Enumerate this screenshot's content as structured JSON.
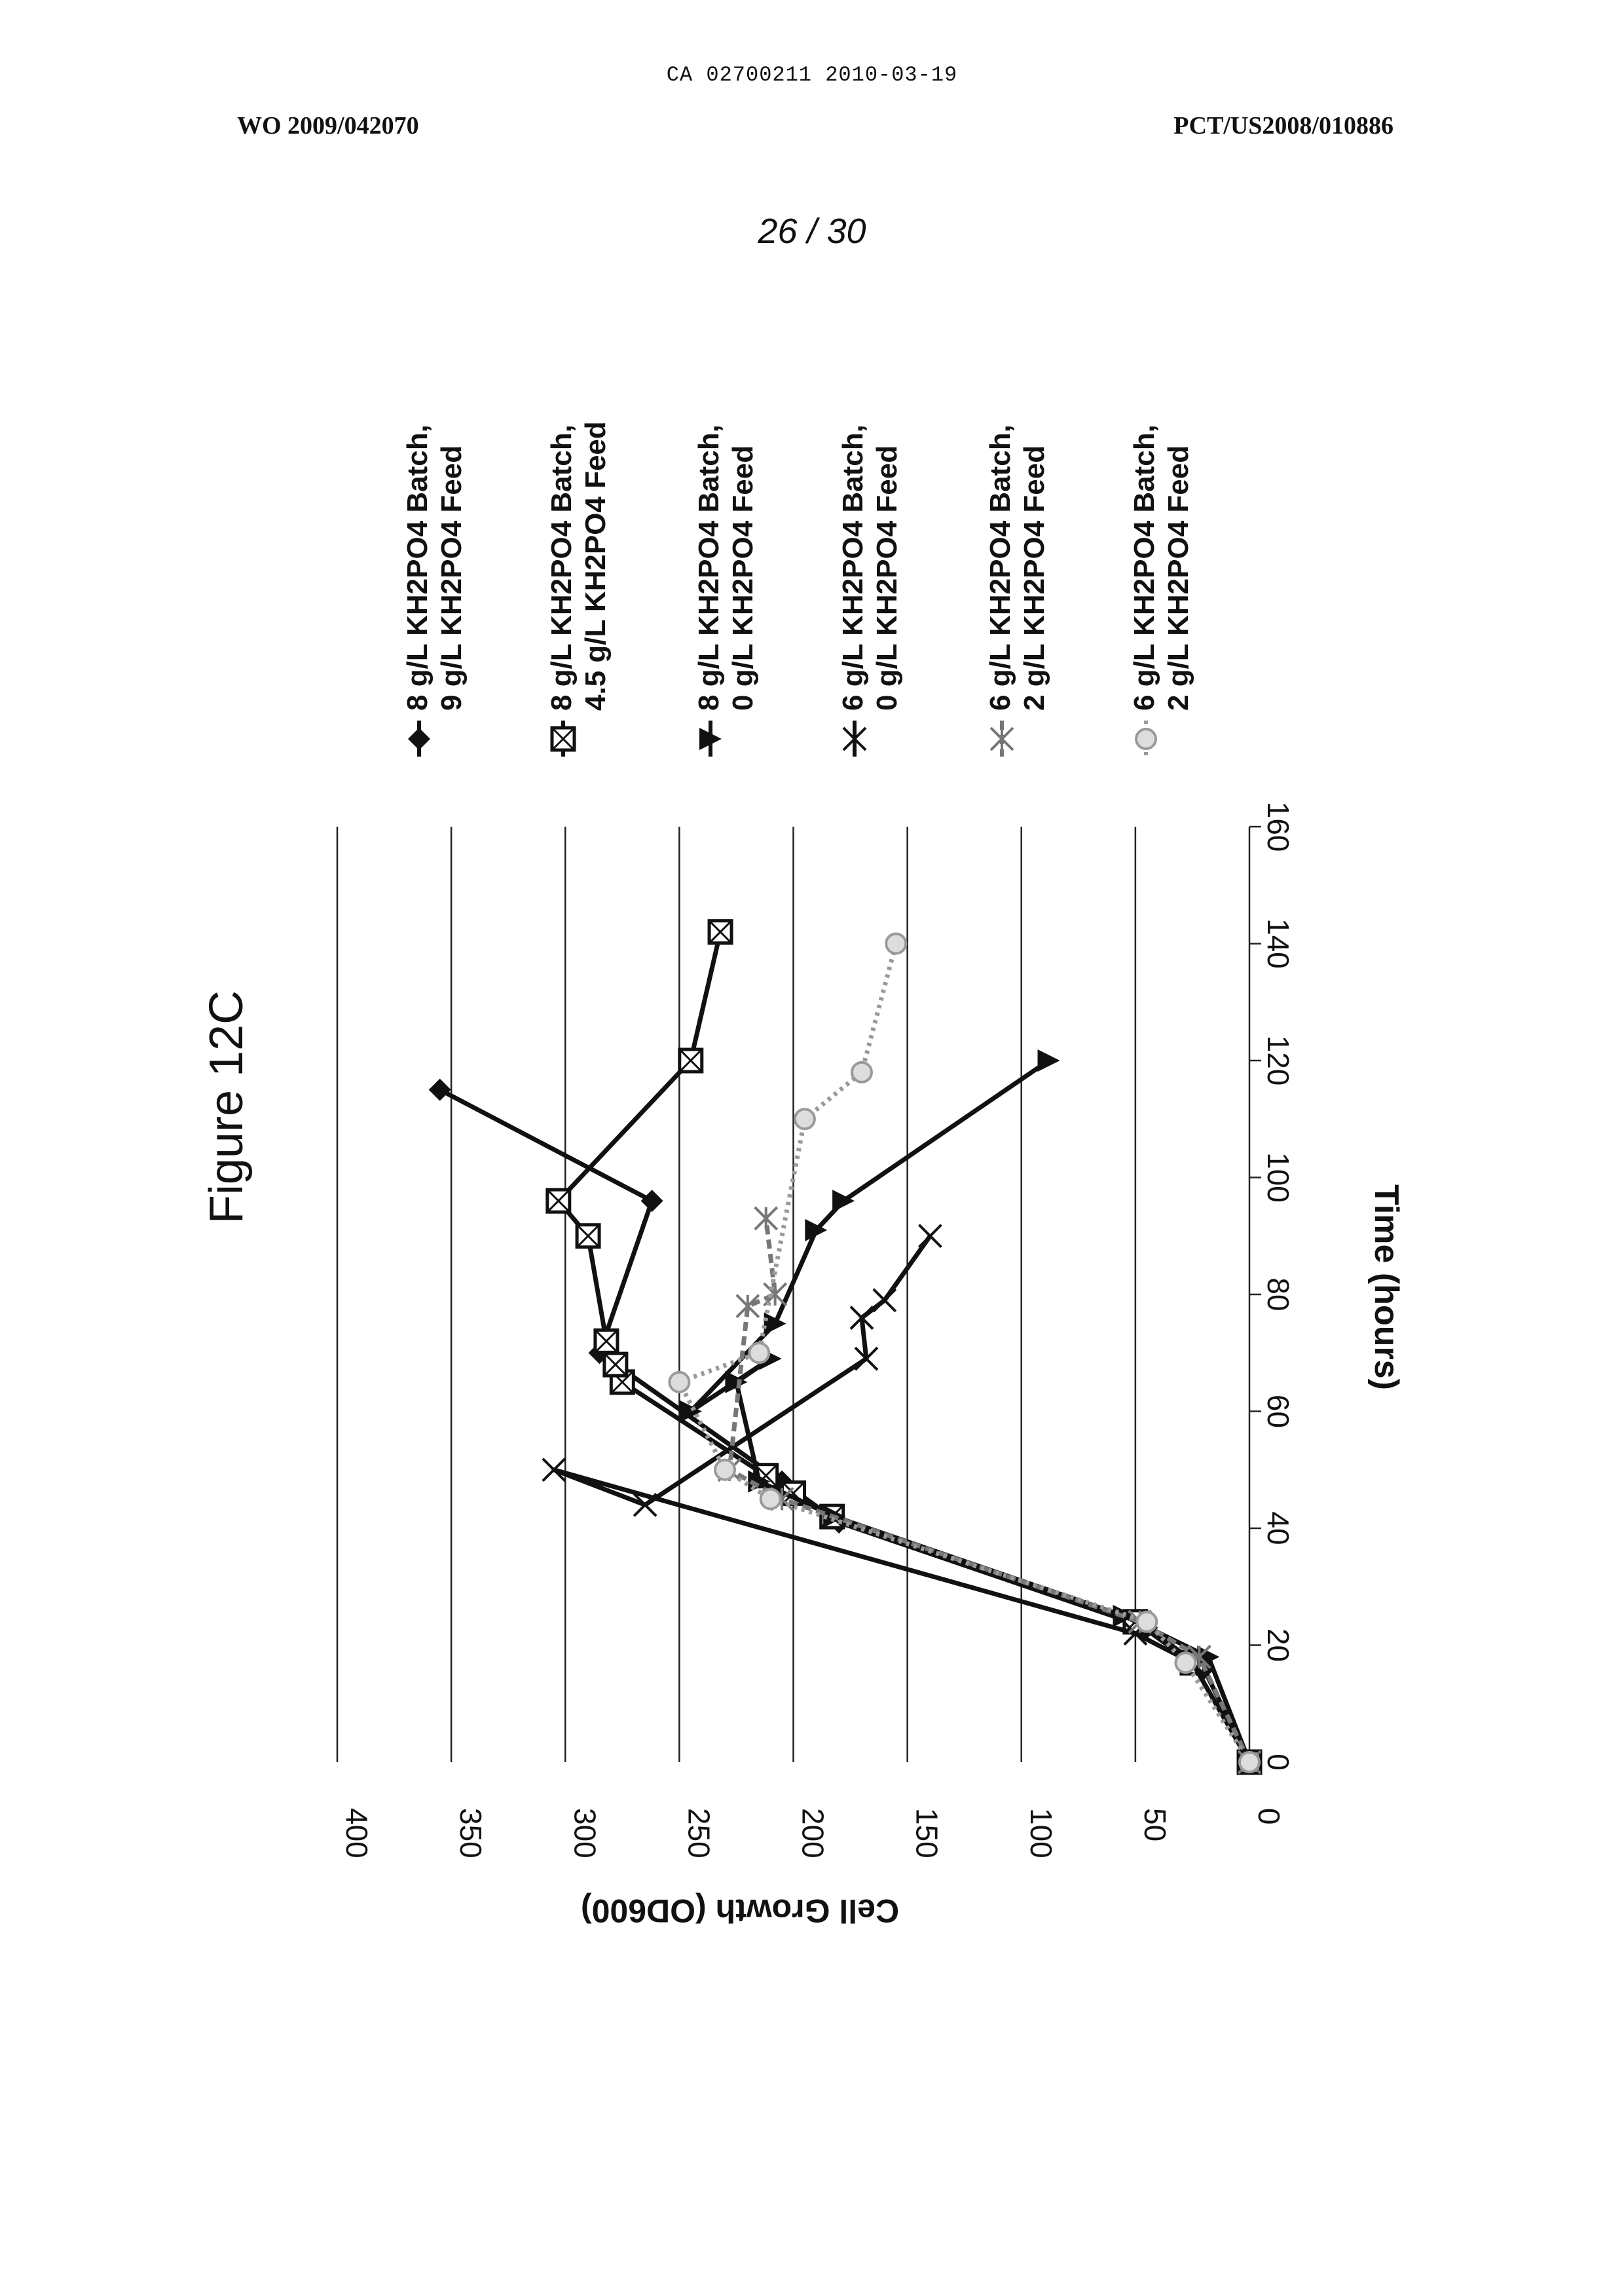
{
  "header": {
    "doc_id": "CA 02700211 2010-03-19",
    "publication": "WO 2009/042070",
    "application": "PCT/US2008/010886",
    "sheet": "26 / 30"
  },
  "chart_data": {
    "type": "line",
    "title": "Figure 12C",
    "xlabel": "Time (hours)",
    "ylabel": "Cell Growth (OD600)",
    "xlim": [
      0,
      160
    ],
    "ylim": [
      0,
      400
    ],
    "xticks": [
      "0",
      "20",
      "40",
      "60",
      "80",
      "100",
      "120",
      "140",
      "160"
    ],
    "yticks": [
      "0",
      "50",
      "100",
      "150",
      "200",
      "250",
      "300",
      "350",
      "400"
    ],
    "grid": "horizontal",
    "orientation": "rotated 90° clockwise on page",
    "legend_position": "right",
    "series": [
      {
        "name": "8 g/L KH2PO4 Batch, 9 g/L KH2PO4 Feed",
        "label_lines": [
          "8 g/L KH2PO4 Batch,",
          "9 g/L KH2PO4 Feed"
        ],
        "marker": "diamond",
        "color": "#111111",
        "dash": "",
        "x": [
          0,
          16,
          23,
          41,
          48,
          70,
          96,
          115
        ],
        "y": [
          0,
          20,
          45,
          180,
          205,
          285,
          262,
          355
        ]
      },
      {
        "name": "8 g/L KH2PO4 Batch, 4.5 g/L KH2PO4 Feed",
        "label_lines": [
          "8 g/L KH2PO4 Batch,",
          "4.5 g/L KH2PO4 Feed"
        ],
        "marker": "square",
        "color": "#111111",
        "dash": "",
        "x": [
          0,
          17,
          24,
          42,
          46,
          49,
          65,
          68,
          72,
          90,
          96,
          120,
          142
        ],
        "y": [
          0,
          25,
          50,
          183,
          200,
          212,
          275,
          278,
          282,
          290,
          303,
          245,
          232
        ]
      },
      {
        "name": "8 g/L KH2PO4 Batch, 0 g/L KH2PO4 Feed",
        "label_lines": [
          "8 g/L KH2PO4 Batch,",
          "0 g/L KH2PO4 Feed"
        ],
        "marker": "triangle",
        "color": "#111111",
        "dash": "",
        "x": [
          0,
          18,
          25,
          42,
          48,
          65,
          69,
          60,
          75,
          91,
          96,
          120
        ],
        "y": [
          0,
          18,
          55,
          182,
          215,
          225,
          210,
          245,
          208,
          190,
          178,
          88
        ]
      },
      {
        "name": "6 g/L KH2PO4 Batch, 0 g/L KH2PO4 Feed",
        "label_lines": [
          "6 g/L KH2PO4 Batch,",
          "0 g/L KH2PO4 Feed"
        ],
        "marker": "x",
        "color": "#111111",
        "dash": "",
        "x": [
          0,
          17,
          22,
          50,
          44,
          69,
          76,
          79,
          90
        ],
        "y": [
          0,
          25,
          50,
          305,
          265,
          168,
          170,
          160,
          140
        ]
      },
      {
        "name": "6 g/L KH2PO4 Batch, 2 g/L KH2PO4 Feed",
        "label_lines": [
          "6 g/L KH2PO4 Batch,",
          "2 g/L KH2PO4 Feed"
        ],
        "marker": "star",
        "color": "#777777",
        "dash": "14,8",
        "x": [
          0,
          18,
          24,
          45,
          50,
          78,
          80,
          93
        ],
        "y": [
          0,
          22,
          48,
          205,
          228,
          220,
          208,
          212
        ]
      },
      {
        "name": "6 g/L KH2PO4 Batch, 2 g/L KH2PO4 Feed",
        "label_lines": [
          "6 g/L KH2PO4 Batch,",
          "2 g/L KH2PO4 Feed"
        ],
        "marker": "circle",
        "color": "#9a9a9a",
        "dash": "5,7",
        "x": [
          0,
          17,
          24,
          45,
          50,
          65,
          70,
          110,
          118,
          140
        ],
        "y": [
          0,
          28,
          45,
          210,
          230,
          250,
          215,
          195,
          170,
          155
        ]
      }
    ]
  }
}
